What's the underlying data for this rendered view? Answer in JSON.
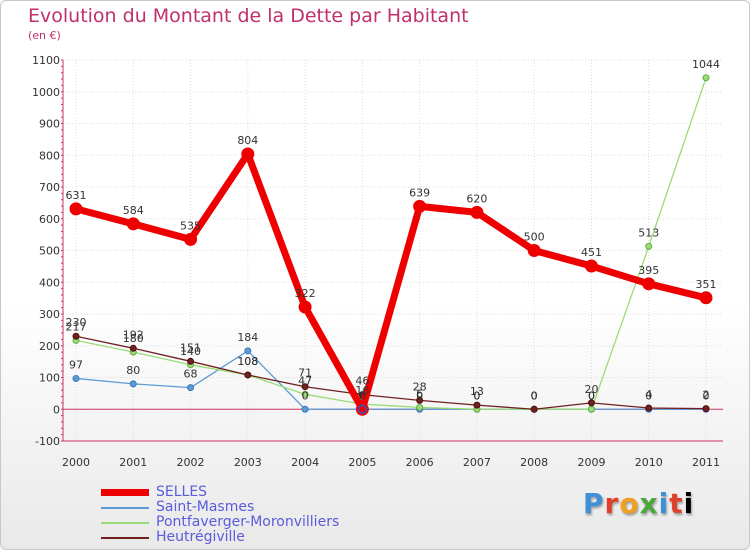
{
  "chart_data": {
    "type": "line",
    "title": "Evolution du Montant de la Dette par Habitant",
    "subtitle": "(en €)",
    "x": [
      "2000",
      "2001",
      "2002",
      "2003",
      "2004",
      "2005",
      "2006",
      "2007",
      "2008",
      "2009",
      "2010",
      "2011"
    ],
    "ylim": [
      -100,
      1100
    ],
    "yticks": [
      -100,
      0,
      100,
      200,
      300,
      400,
      500,
      600,
      700,
      800,
      900,
      1000,
      1100
    ],
    "grid": true,
    "legend": "bottom-left",
    "series": [
      {
        "name": "SELLES",
        "color": "#ee0000",
        "values": [
          631,
          584,
          535,
          804,
          322,
          0,
          639,
          620,
          500,
          451,
          395,
          351
        ]
      },
      {
        "name": "Saint-Masmes",
        "color": "#5b9bd5",
        "values": [
          97,
          80,
          68,
          184,
          0,
          0,
          0,
          0,
          0,
          0,
          0,
          0
        ]
      },
      {
        "name": "Pontfaverger-Moronvilliers",
        "color": "#99dd77",
        "values": [
          217,
          180,
          140,
          108,
          47,
          16,
          6,
          0,
          0,
          0,
          513,
          1044
        ]
      },
      {
        "name": "Heutrégiville",
        "color": "#702020",
        "values": [
          230,
          192,
          151,
          108,
          71,
          46,
          28,
          13,
          0,
          20,
          4,
          2
        ]
      }
    ],
    "data_labels": [
      {
        "series": 0,
        "values": [
          "631",
          "584",
          "535",
          "804",
          "322",
          "0",
          "639",
          "620",
          "500",
          "451",
          "395",
          "351"
        ]
      },
      {
        "series": 1,
        "values": [
          "97",
          "80",
          "68",
          "184",
          "0",
          "0",
          "0",
          "0",
          "0",
          "0",
          "0",
          "0"
        ]
      },
      {
        "series": 2,
        "values": [
          "217",
          "180",
          "140",
          "108",
          "47",
          "16",
          "6",
          "0",
          "0",
          "0",
          "513",
          "1044"
        ]
      },
      {
        "series": 3,
        "values": [
          "230",
          "192",
          "151",
          "108",
          "71",
          "46",
          "28",
          "13",
          "0",
          "20",
          "4",
          "2"
        ]
      }
    ]
  },
  "logo_text": "Proxiti"
}
